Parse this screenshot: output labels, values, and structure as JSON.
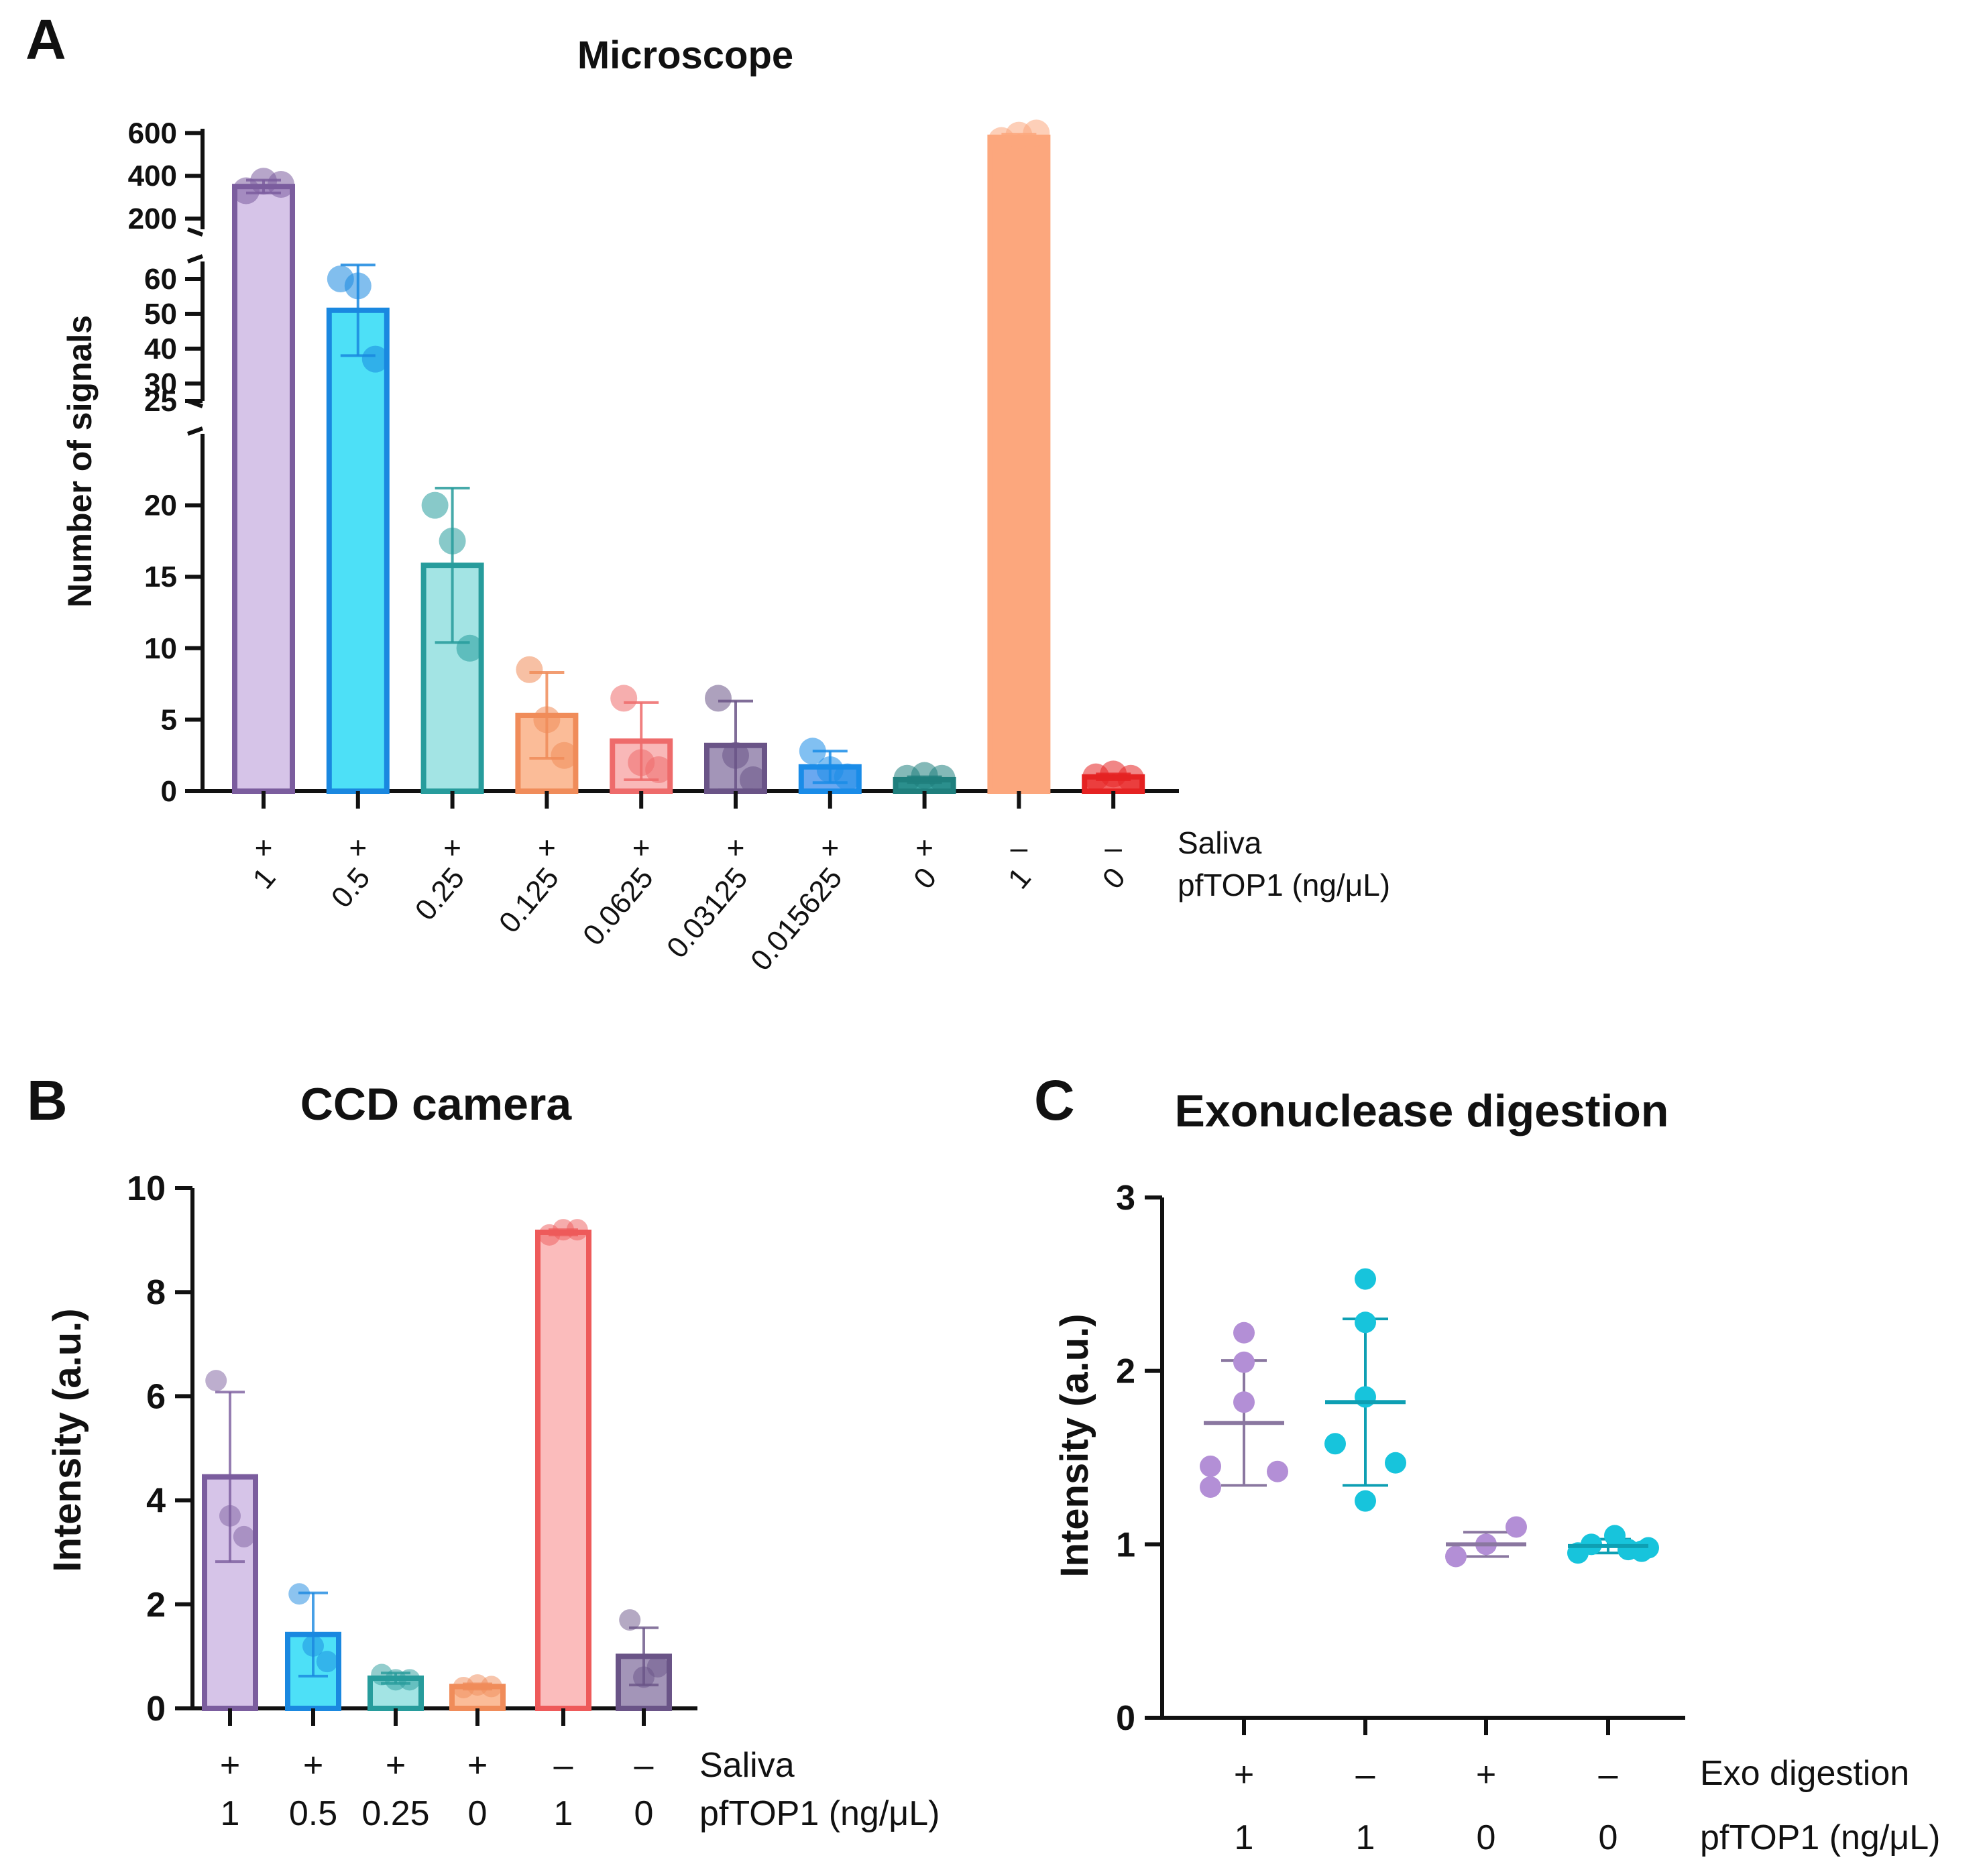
{
  "panels": {
    "a": {
      "letter": "A"
    },
    "b": {
      "letter": "B"
    },
    "c": {
      "letter": "C"
    }
  },
  "chart_data": [
    {
      "panel": "A",
      "type": "bar",
      "title": "Microscope",
      "ylabel": "Number of signals",
      "y_segments": [
        {
          "range": [
            0,
            25
          ],
          "ticks": [
            0,
            5,
            10,
            15,
            20,
            25
          ]
        },
        {
          "range": [
            25,
            65
          ],
          "ticks": [
            30,
            40,
            50,
            60
          ]
        },
        {
          "range": [
            150,
            620
          ],
          "ticks": [
            200,
            400,
            600
          ]
        }
      ],
      "row_labels": [
        "Saliva",
        "pfTOP1 (ng/μL)"
      ],
      "categories": [
        {
          "saliva": "+",
          "pftop1": "1",
          "value": 350,
          "sd": 30,
          "points": [
            330,
            375,
            360
          ],
          "fill": "#d6c4e8",
          "edge": "#7b5d9e"
        },
        {
          "saliva": "+",
          "pftop1": "0.5",
          "value": 51,
          "sd": 13,
          "points": [
            60,
            58,
            37
          ],
          "fill": "#4de0f7",
          "edge": "#1a88e0"
        },
        {
          "saliva": "+",
          "pftop1": "0.25",
          "value": 15.8,
          "sd": 5.4,
          "points": [
            20,
            17.5,
            10
          ],
          "fill": "#a3e4e4",
          "edge": "#279c9c"
        },
        {
          "saliva": "+",
          "pftop1": "0.125",
          "value": 5.3,
          "sd": 3,
          "points": [
            8.5,
            5,
            2.5
          ],
          "fill": "#fbbc98",
          "edge": "#f08c5a"
        },
        {
          "saliva": "+",
          "pftop1": "0.0625",
          "value": 3.5,
          "sd": 2.7,
          "points": [
            6.5,
            2,
            1.5
          ],
          "fill": "#f9b8b8",
          "edge": "#ee6b6b"
        },
        {
          "saliva": "+",
          "pftop1": "0.03125",
          "value": 3.2,
          "sd": 3.1,
          "points": [
            6.5,
            2.5,
            0.8
          ],
          "fill": "#a395b8",
          "edge": "#6a5487"
        },
        {
          "saliva": "+",
          "pftop1": "0.015625",
          "value": 1.7,
          "sd": 1.1,
          "points": [
            2.8,
            1.5,
            1
          ],
          "fill": "#6aa8f0",
          "edge": "#1a8ce8"
        },
        {
          "saliva": "+",
          "pftop1": "0",
          "value": 0.8,
          "sd": 0.2,
          "points": [
            0.9,
            1.1,
            0.9
          ],
          "fill": "#3aa3a0",
          "edge": "#1f7f7d"
        },
        {
          "saliva": "–",
          "pftop1": "1",
          "value": 580,
          "sd": 15,
          "points": [
            565,
            590,
            600
          ],
          "fill": "#fca77d",
          "edge": "#fca77d"
        },
        {
          "saliva": "–",
          "pftop1": "0",
          "value": 1,
          "sd": 0.2,
          "points": [
            1,
            1.2,
            0.9
          ],
          "fill": "#f26060",
          "edge": "#e52222"
        }
      ]
    },
    {
      "panel": "B",
      "type": "bar",
      "title": "CCD camera",
      "ylabel": "Intensity (a.u.)",
      "ylim": [
        0,
        10
      ],
      "yticks": [
        0,
        2,
        4,
        6,
        8,
        10
      ],
      "row_labels": [
        "Saliva",
        "pfTOP1 (ng/μL)"
      ],
      "categories": [
        {
          "saliva": "+",
          "pftop1": "1",
          "value": 4.45,
          "sd": 1.63,
          "points": [
            6.3,
            3.7,
            3.3
          ],
          "fill": "#d6c4e8",
          "edge": "#7b5d9e"
        },
        {
          "saliva": "+",
          "pftop1": "0.5",
          "value": 1.42,
          "sd": 0.8,
          "points": [
            2.2,
            1.2,
            0.9
          ],
          "fill": "#4de0f7",
          "edge": "#1a88e0"
        },
        {
          "saliva": "+",
          "pftop1": "0.25",
          "value": 0.58,
          "sd": 0.1,
          "points": [
            0.65,
            0.55,
            0.55
          ],
          "fill": "#a3e4e4",
          "edge": "#279c9c"
        },
        {
          "saliva": "+",
          "pftop1": "0",
          "value": 0.42,
          "sd": 0.05,
          "points": [
            0.4,
            0.45,
            0.42
          ],
          "fill": "#fbbc98",
          "edge": "#f08c5a"
        },
        {
          "saliva": "–",
          "pftop1": "1",
          "value": 9.15,
          "sd": 0.05,
          "points": [
            9.1,
            9.2,
            9.2
          ],
          "fill": "#fbbcbc",
          "edge": "#ee5a5a"
        },
        {
          "saliva": "–",
          "pftop1": "0",
          "value": 1.0,
          "sd": 0.55,
          "points": [
            1.7,
            0.6,
            0.8
          ],
          "fill": "#a395b8",
          "edge": "#6a5487"
        }
      ]
    },
    {
      "panel": "C",
      "type": "scatter",
      "title": "Exonuclease digestion",
      "ylabel": "Intensity (a.u.)",
      "ylim": [
        0,
        3
      ],
      "yticks": [
        0,
        1,
        2,
        3
      ],
      "row_labels": [
        "Exo digestion",
        "pfTOP1 (ng/μL)"
      ],
      "groups": [
        {
          "exo": "+",
          "pftop1": "1",
          "mean": 1.7,
          "sd": 0.36,
          "points": [
            2.22,
            2.05,
            1.82,
            1.45,
            1.33,
            1.42
          ],
          "color": "#b38fd6",
          "line": "#8a77a0"
        },
        {
          "exo": "–",
          "pftop1": "1",
          "mean": 1.82,
          "sd": 0.48,
          "points": [
            2.53,
            2.28,
            1.85,
            1.58,
            1.47,
            1.25
          ],
          "color": "#17c4dc",
          "line": "#0e9fb3"
        },
        {
          "exo": "+",
          "pftop1": "0",
          "mean": 1.0,
          "sd": 0.07,
          "points": [
            0.93,
            1.0,
            1.1
          ],
          "color": "#b38fd6",
          "line": "#8a77a0"
        },
        {
          "exo": "–",
          "pftop1": "0",
          "mean": 0.99,
          "sd": 0.04,
          "points": [
            0.95,
            1.05,
            0.97,
            1.0,
            0.96,
            0.98
          ],
          "color": "#17c4dc",
          "line": "#0e9fb3"
        }
      ]
    }
  ]
}
